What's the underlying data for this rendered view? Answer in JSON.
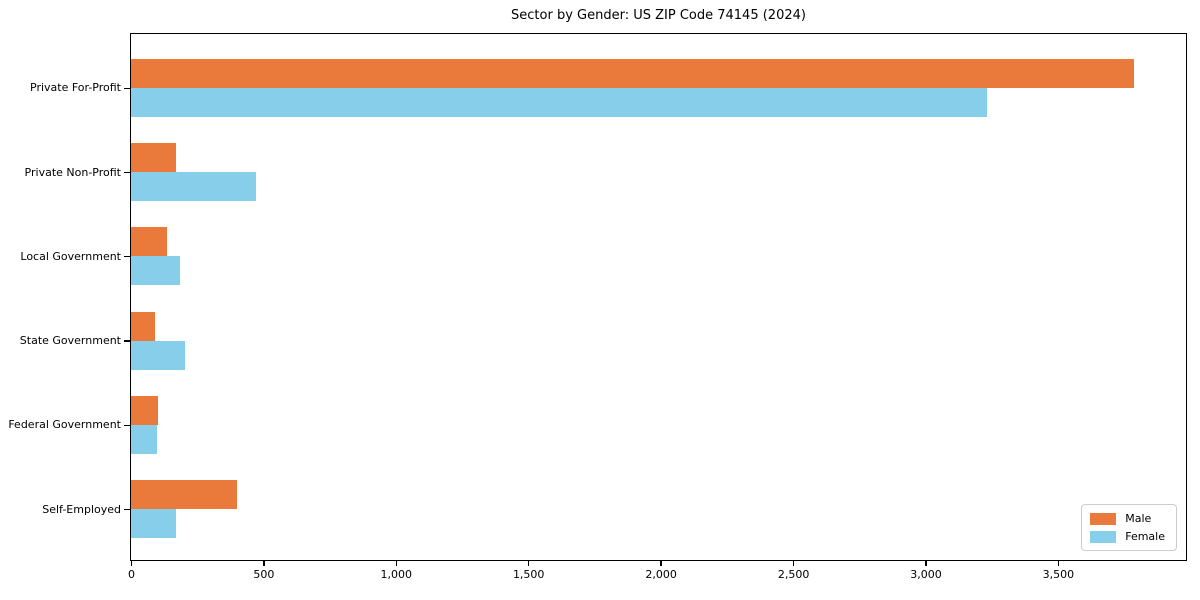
{
  "chart_data": {
    "type": "bar",
    "orientation": "horizontal",
    "title": "Sector by Gender: US ZIP Code 74145 (2024)",
    "categories": [
      "Private For-Profit",
      "Private Non-Profit",
      "Local Government",
      "State Government",
      "Federal Government",
      "Self-Employed"
    ],
    "series": [
      {
        "name": "Male",
        "color": "#E97A3C",
        "values": [
          3786,
          171,
          134,
          89,
          100,
          400
        ]
      },
      {
        "name": "Female",
        "color": "#87CEEB",
        "values": [
          3232,
          472,
          183,
          203,
          97,
          171
        ]
      }
    ],
    "xlabel": "",
    "ylabel": "",
    "xlim": [
      0,
      3980
    ],
    "xticks": {
      "values": [
        0,
        500,
        1000,
        1500,
        2000,
        2500,
        3000,
        3500
      ],
      "labels": [
        "0",
        "500",
        "1,000",
        "1,500",
        "2,000",
        "2,500",
        "3,000",
        "3,500"
      ]
    },
    "grid": false,
    "background": "#ffffff",
    "axis_color": "#000000",
    "legend": {
      "position": "lower right",
      "entries": [
        "Male",
        "Female"
      ]
    }
  }
}
